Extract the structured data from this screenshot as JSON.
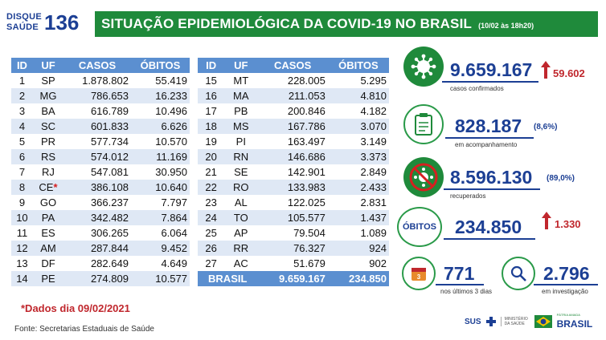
{
  "logo": {
    "line1": "DISQUE",
    "line2": "SAÚDE",
    "number": "136"
  },
  "header": {
    "title": "SITUAÇÃO EPIDEMIOLÓGICA DA COVID-19 NO BRASIL",
    "date": "(10/02 às 18h20)"
  },
  "table": {
    "columns": [
      "ID",
      "UF",
      "CASOS",
      "ÓBITOS"
    ],
    "left": [
      {
        "id": "1",
        "uf": "SP",
        "casos": "1.878.802",
        "obitos": "55.419"
      },
      {
        "id": "2",
        "uf": "MG",
        "casos": "786.653",
        "obitos": "16.233"
      },
      {
        "id": "3",
        "uf": "BA",
        "casos": "616.789",
        "obitos": "10.496"
      },
      {
        "id": "4",
        "uf": "SC",
        "casos": "601.833",
        "obitos": "6.626"
      },
      {
        "id": "5",
        "uf": "PR",
        "casos": "577.734",
        "obitos": "10.570"
      },
      {
        "id": "6",
        "uf": "RS",
        "casos": "574.012",
        "obitos": "11.169"
      },
      {
        "id": "7",
        "uf": "RJ",
        "casos": "547.081",
        "obitos": "30.950"
      },
      {
        "id": "8",
        "uf": "CE",
        "star": "*",
        "casos": "386.108",
        "obitos": "10.640"
      },
      {
        "id": "9",
        "uf": "GO",
        "casos": "366.237",
        "obitos": "7.797"
      },
      {
        "id": "10",
        "uf": "PA",
        "casos": "342.482",
        "obitos": "7.864"
      },
      {
        "id": "11",
        "uf": "ES",
        "casos": "306.265",
        "obitos": "6.064"
      },
      {
        "id": "12",
        "uf": "AM",
        "casos": "287.844",
        "obitos": "9.452"
      },
      {
        "id": "13",
        "uf": "DF",
        "casos": "282.649",
        "obitos": "4.649"
      },
      {
        "id": "14",
        "uf": "PE",
        "casos": "274.809",
        "obitos": "10.577"
      }
    ],
    "right": [
      {
        "id": "15",
        "uf": "MT",
        "casos": "228.005",
        "obitos": "5.295"
      },
      {
        "id": "16",
        "uf": "MA",
        "casos": "211.053",
        "obitos": "4.810"
      },
      {
        "id": "17",
        "uf": "PB",
        "casos": "200.846",
        "obitos": "4.182"
      },
      {
        "id": "18",
        "uf": "MS",
        "casos": "167.786",
        "obitos": "3.070"
      },
      {
        "id": "19",
        "uf": "PI",
        "casos": "163.497",
        "obitos": "3.149"
      },
      {
        "id": "20",
        "uf": "RN",
        "casos": "146.686",
        "obitos": "3.373"
      },
      {
        "id": "21",
        "uf": "SE",
        "casos": "142.901",
        "obitos": "2.849"
      },
      {
        "id": "22",
        "uf": "RO",
        "casos": "133.983",
        "obitos": "2.433"
      },
      {
        "id": "23",
        "uf": "AL",
        "casos": "122.025",
        "obitos": "2.831"
      },
      {
        "id": "24",
        "uf": "TO",
        "casos": "105.577",
        "obitos": "1.437"
      },
      {
        "id": "25",
        "uf": "AP",
        "casos": "79.504",
        "obitos": "1.089"
      },
      {
        "id": "26",
        "uf": "RR",
        "casos": "76.327",
        "obitos": "924"
      },
      {
        "id": "27",
        "uf": "AC",
        "casos": "51.679",
        "obitos": "902"
      }
    ],
    "total": {
      "label": "BRASIL",
      "casos": "9.659.167",
      "obitos": "234.850"
    }
  },
  "stats": {
    "confirmed": {
      "value": "9.659.167",
      "delta": "59.602",
      "label": "casos confirmados",
      "icon": "virus-icon"
    },
    "monitoring": {
      "value": "828.187",
      "pct": "(8,6%)",
      "label": "em acompanhamento",
      "icon": "clipboard-icon"
    },
    "recovered": {
      "value": "8.596.130",
      "pct": "(89,0%)",
      "label": "recuperados",
      "icon": "virus-crossed-icon"
    },
    "deaths": {
      "tag": "ÓBITOS",
      "value": "234.850",
      "delta": "1.330"
    },
    "last3": {
      "value": "771",
      "label": "nos últimos 3 dias",
      "icon": "calendar-icon",
      "calendar_number": "3"
    },
    "investigating": {
      "value": "2.796",
      "label": "em investigação",
      "icon": "magnifier-icon"
    }
  },
  "note": "*Dados dia 09/02/2021",
  "source": "Fonte: Secretarias Estaduais de Saúde",
  "footer": {
    "sus": "SUS",
    "ministerio": "MINISTÉRIO DA SAÚDE",
    "brasil": "BRASIL",
    "patria": "PÁTRIA AMADA"
  },
  "colors": {
    "green": "#1f8a3b",
    "blue": "#1c3f94",
    "table_header": "#5b8fd0",
    "row_alt": "#dfe8f5",
    "red": "#c0272d"
  }
}
